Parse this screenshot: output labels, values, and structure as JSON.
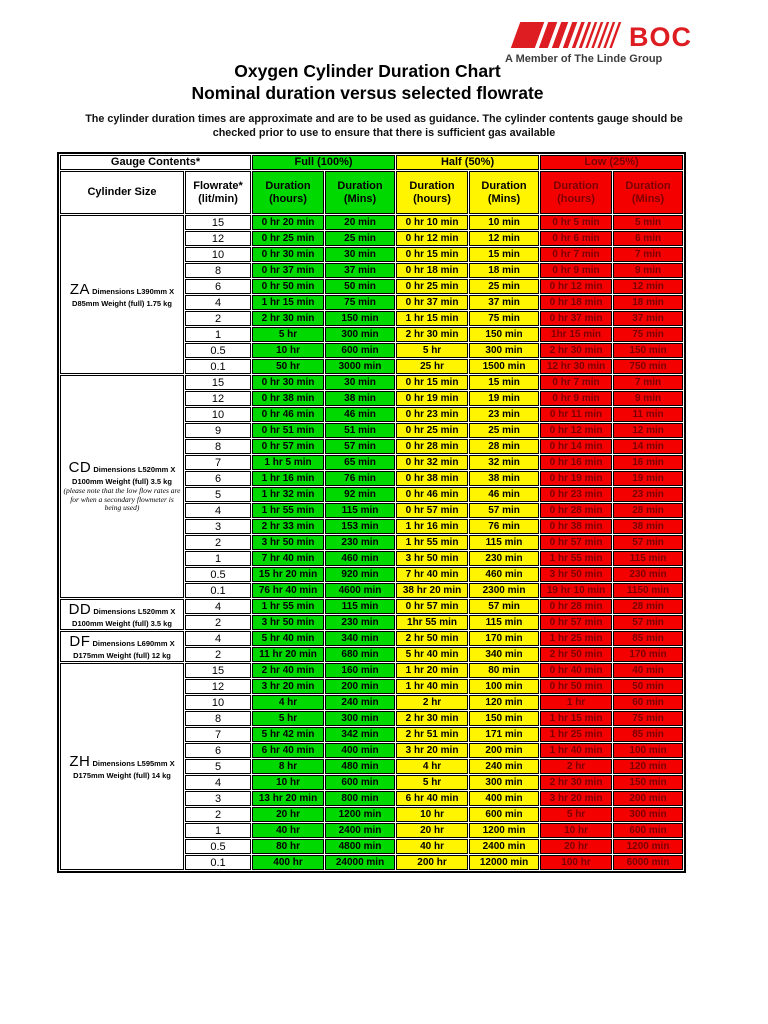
{
  "logo": {
    "brand": "BOC",
    "tagline": "A Member of The Linde Group",
    "brand_color": "#dd1d21"
  },
  "header": {
    "title": "Oxygen Cylinder Duration Chart",
    "subtitle": "Nominal duration versus selected flowrate",
    "disclaimer_line1": "The cylinder duration times are approximate and are to be used as guidance.  The cylinder contents gauge should be",
    "disclaimer_line2": "checked prior to use to ensure that there is sufficient gas available"
  },
  "table": {
    "gauge_contents_label": "Gauge Contents*",
    "cylinder_size_label": "Cylinder Size",
    "flowrate_label": "Flowrate*",
    "flowrate_unit": "(lit/min)",
    "group_headers": [
      "Full (100%)",
      "Half (50%)",
      "Low (25%)"
    ],
    "duration_label": "Duration",
    "hours_unit": "(hours)",
    "mins_unit": "(Mins)",
    "colors": {
      "full": "#00d900",
      "half": "#fff500",
      "low": "#f40000",
      "low_text": "#7c0000"
    }
  },
  "sections": [
    {
      "code": "ZA",
      "desc1": "Dimensions L390mm X",
      "desc2": "D85mm Weight (full) 1.75 kg",
      "note": "",
      "rows": [
        {
          "flow": "15",
          "cells": [
            "0 hr 20 min",
            "20 min",
            "0 hr 10 min",
            "10 min",
            "0 hr 5 min",
            "5 min"
          ]
        },
        {
          "flow": "12",
          "cells": [
            "0 hr 25 min",
            "25 min",
            "0 hr 12 min",
            "12 min",
            "0 hr 6 min",
            "6 min"
          ]
        },
        {
          "flow": "10",
          "cells": [
            "0 hr 30 min",
            "30 min",
            "0 hr 15 min",
            "15 min",
            "0 hr 7 min",
            "7 min"
          ]
        },
        {
          "flow": "8",
          "cells": [
            "0 hr 37 min",
            "37 min",
            "0 hr 18 min",
            "18 min",
            "0 hr 9 min",
            "9 min"
          ]
        },
        {
          "flow": "6",
          "cells": [
            "0 hr 50 min",
            "50 min",
            "0 hr 25 min",
            "25 min",
            "0 hr 12 min",
            "12 min"
          ]
        },
        {
          "flow": "4",
          "cells": [
            "1 hr 15 min",
            "75 min",
            "0 hr 37 min",
            "37 min",
            "0 hr 18 min",
            "18 min"
          ]
        },
        {
          "flow": "2",
          "cells": [
            "2 hr 30 min",
            "150 min",
            "1 hr 15 min",
            "75 min",
            "0 hr 37 min",
            "37 min"
          ]
        },
        {
          "flow": "1",
          "cells": [
            "5 hr",
            "300 min",
            "2 hr 30 min",
            "150 min",
            "1hr 15 min",
            "75 min"
          ]
        },
        {
          "flow": "0.5",
          "cells": [
            "10 hr",
            "600 min",
            "5 hr",
            "300 min",
            "2 hr 30 min",
            "150 min"
          ]
        },
        {
          "flow": "0.1",
          "cells": [
            "50 hr",
            "3000 min",
            "25 hr",
            "1500 min",
            "12 hr 30 min",
            "750 min"
          ]
        }
      ]
    },
    {
      "code": "CD",
      "desc1": "Dimensions L520mm X",
      "desc2": "D100mm Weight (full) 3.5 kg",
      "note": "(please note that the low flow rates are for when a secondary flowmeter is being used)",
      "rows": [
        {
          "flow": "15",
          "cells": [
            "0 hr 30 min",
            "30 min",
            "0 hr 15 min",
            "15 min",
            "0 hr 7 min",
            "7 min"
          ]
        },
        {
          "flow": "12",
          "cells": [
            "0 hr 38 min",
            "38 min",
            "0 hr 19 min",
            "19 min",
            "0 hr 9 min",
            "9 min"
          ]
        },
        {
          "flow": "10",
          "cells": [
            "0 hr 46 min",
            "46 min",
            "0 hr 23 min",
            "23 min",
            "0 hr 11 min",
            "11 min"
          ]
        },
        {
          "flow": "9",
          "cells": [
            "0 hr 51 min",
            "51 min",
            "0 hr 25 min",
            "25 min",
            "0 hr 12 min",
            "12 min"
          ]
        },
        {
          "flow": "8",
          "cells": [
            "0 hr 57 min",
            "57 min",
            "0 hr 28 min",
            "28 min",
            "0 hr 14 min",
            "14 min"
          ]
        },
        {
          "flow": "7",
          "cells": [
            "1 hr 5 min",
            "65 min",
            "0 hr 32 min",
            "32 min",
            "0 hr 16 min",
            "16 min"
          ]
        },
        {
          "flow": "6",
          "cells": [
            "1 hr 16 min",
            "76 min",
            "0 hr 38 min",
            "38 min",
            "0 hr 19 min",
            "19 min"
          ]
        },
        {
          "flow": "5",
          "cells": [
            "1 hr 32 min",
            "92 min",
            "0 hr 46 min",
            "46 min",
            "0 hr 23 min",
            "23 min"
          ]
        },
        {
          "flow": "4",
          "cells": [
            "1 hr 55 min",
            "115 min",
            "0 hr 57 min",
            "57 min",
            "0 hr 28 min",
            "28 min"
          ]
        },
        {
          "flow": "3",
          "cells": [
            "2 hr 33 min",
            "153 min",
            "1 hr 16 min",
            "76 min",
            "0 hr 38 min",
            "38 min"
          ]
        },
        {
          "flow": "2",
          "cells": [
            "3 hr 50 min",
            "230 min",
            "1 hr 55 min",
            "115 min",
            "0 hr 57 min",
            "57 min"
          ]
        },
        {
          "flow": "1",
          "cells": [
            "7 hr 40 min",
            "460 min",
            "3 hr 50 min",
            "230 min",
            "1 hr 55 min",
            "115 min"
          ]
        },
        {
          "flow": "0.5",
          "cells": [
            "15 hr 20 min",
            "920 min",
            "7 hr 40 min",
            "460 min",
            "3 hr 50 min",
            "230 min"
          ]
        },
        {
          "flow": "0.1",
          "cells": [
            "76 hr 40 min",
            "4600 min",
            "38 hr 20 min",
            "2300 min",
            "19 hr 10 min",
            "1150 min"
          ]
        }
      ]
    },
    {
      "code": "DD",
      "desc1": "Dimensions L520mm X",
      "desc2": "D100mm Weight (full) 3.5 kg",
      "note": "",
      "rows": [
        {
          "flow": "4",
          "cells": [
            "1 hr 55 min",
            "115 min",
            "0 hr 57 min",
            "57 min",
            "0 hr 28 min",
            "28 min"
          ]
        },
        {
          "flow": "2",
          "cells": [
            "3 hr 50 min",
            "230 min",
            "1hr 55 min",
            "115 min",
            "0 hr 57 min",
            "57 min"
          ]
        }
      ]
    },
    {
      "code": "DF",
      "desc1": "Dimensions L690mm X",
      "desc2": "D175mm Weight (full) 12 kg",
      "note": "",
      "rows": [
        {
          "flow": "4",
          "cells": [
            "5 hr 40 min",
            "340 min",
            "2 hr 50 min",
            "170 min",
            "1 hr 25 min",
            "85 min"
          ]
        },
        {
          "flow": "2",
          "cells": [
            "11 hr 20 min",
            "680 min",
            "5 hr 40 min",
            "340 min",
            "2 hr 50 min",
            "170 min"
          ]
        }
      ]
    },
    {
      "code": "ZH",
      "desc1": "Dimensions L595mm X",
      "desc2": "D175mm Weight (full) 14 kg",
      "note": "",
      "rows": [
        {
          "flow": "15",
          "cells": [
            "2 hr 40 min",
            "160 min",
            "1 hr 20 min",
            "80 min",
            "0 hr 40 min",
            "40 min"
          ]
        },
        {
          "flow": "12",
          "cells": [
            "3 hr 20 min",
            "200 min",
            "1 hr 40 min",
            "100 min",
            "0 hr 50 min",
            "50 min"
          ]
        },
        {
          "flow": "10",
          "cells": [
            "4 hr",
            "240 min",
            "2 hr",
            "120 min",
            "1 hr",
            "60 min"
          ]
        },
        {
          "flow": "8",
          "cells": [
            "5 hr",
            "300 min",
            "2 hr 30 min",
            "150 min",
            "1 hr 15 min",
            "75 min"
          ]
        },
        {
          "flow": "7",
          "cells": [
            "5 hr 42 min",
            "342 min",
            "2 hr 51 min",
            "171 min",
            "1 hr 25 min",
            "85 min"
          ]
        },
        {
          "flow": "6",
          "cells": [
            "6 hr 40 min",
            "400 min",
            "3 hr 20 min",
            "200 min",
            "1 hr 40 min",
            "100 min"
          ]
        },
        {
          "flow": "5",
          "cells": [
            "8 hr",
            "480 min",
            "4 hr",
            "240 min",
            "2 hr",
            "120 min"
          ]
        },
        {
          "flow": "4",
          "cells": [
            "10 hr",
            "600 min",
            "5 hr",
            "300 min",
            "2 hr 30 min",
            "150 min"
          ]
        },
        {
          "flow": "3",
          "cells": [
            "13 hr 20 min",
            "800 min",
            "6 hr 40 min",
            "400 min",
            "3 hr 20 min",
            "200 min"
          ]
        },
        {
          "flow": "2",
          "cells": [
            "20 hr",
            "1200 min",
            "10 hr",
            "600 min",
            "5 hr",
            "300 min"
          ]
        },
        {
          "flow": "1",
          "cells": [
            "40 hr",
            "2400 min",
            "20 hr",
            "1200 min",
            "10 hr",
            "600 min"
          ]
        },
        {
          "flow": "0.5",
          "cells": [
            "80 hr",
            "4800 min",
            "40 hr",
            "2400 min",
            "20 hr",
            "1200 min"
          ]
        },
        {
          "flow": "0.1",
          "cells": [
            "400 hr",
            "24000 min",
            "200 hr",
            "12000 min",
            "100 hr",
            "6000 min"
          ]
        }
      ]
    }
  ]
}
